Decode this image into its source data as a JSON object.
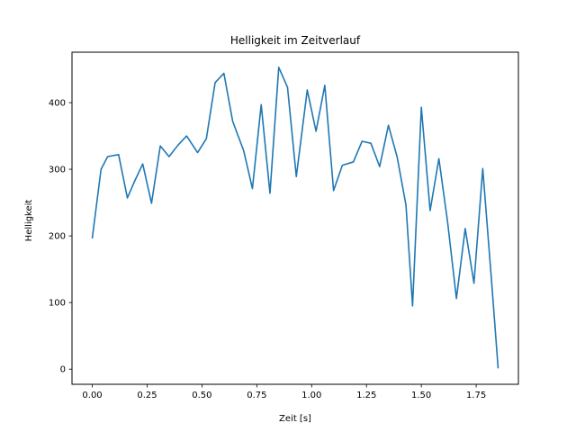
{
  "chart_data": {
    "type": "line",
    "title": "Helligkeit im Zeitverlauf",
    "xlabel": "Zeit [s]",
    "ylabel": "Helligkeit",
    "xlim": [
      -0.0925,
      1.9425
    ],
    "ylim": [
      -22.7,
      475.7
    ],
    "xticks": [
      0.0,
      0.25,
      0.5,
      0.75,
      1.0,
      1.25,
      1.5,
      1.75
    ],
    "xtick_labels": [
      "0.00",
      "0.25",
      "0.50",
      "0.75",
      "1.00",
      "1.25",
      "1.50",
      "1.75"
    ],
    "yticks": [
      0,
      100,
      200,
      300,
      400
    ],
    "ytick_labels": [
      "0",
      "100",
      "200",
      "300",
      "400"
    ],
    "grid": false,
    "series": [
      {
        "color": "#1f77b4",
        "x": [
          0.0,
          0.04,
          0.07,
          0.12,
          0.16,
          0.19,
          0.23,
          0.27,
          0.31,
          0.35,
          0.39,
          0.43,
          0.48,
          0.52,
          0.56,
          0.6,
          0.64,
          0.69,
          0.73,
          0.77,
          0.81,
          0.85,
          0.89,
          0.93,
          0.98,
          1.02,
          1.06,
          1.1,
          1.14,
          1.19,
          1.23,
          1.27,
          1.31,
          1.35,
          1.39,
          1.43,
          1.46,
          1.5,
          1.54,
          1.58,
          1.62,
          1.66,
          1.7,
          1.74,
          1.78,
          1.82,
          1.85
        ],
        "y": [
          197,
          300,
          319,
          322,
          257,
          280,
          308,
          249,
          335,
          319,
          336,
          350,
          325,
          346,
          430,
          444,
          372,
          328,
          271,
          397,
          264,
          453,
          423,
          289,
          419,
          357,
          426,
          268,
          306,
          311,
          342,
          339,
          304,
          366,
          318,
          246,
          95,
          393,
          238,
          316,
          220,
          106,
          211,
          129,
          301,
          133,
          2
        ]
      }
    ]
  }
}
